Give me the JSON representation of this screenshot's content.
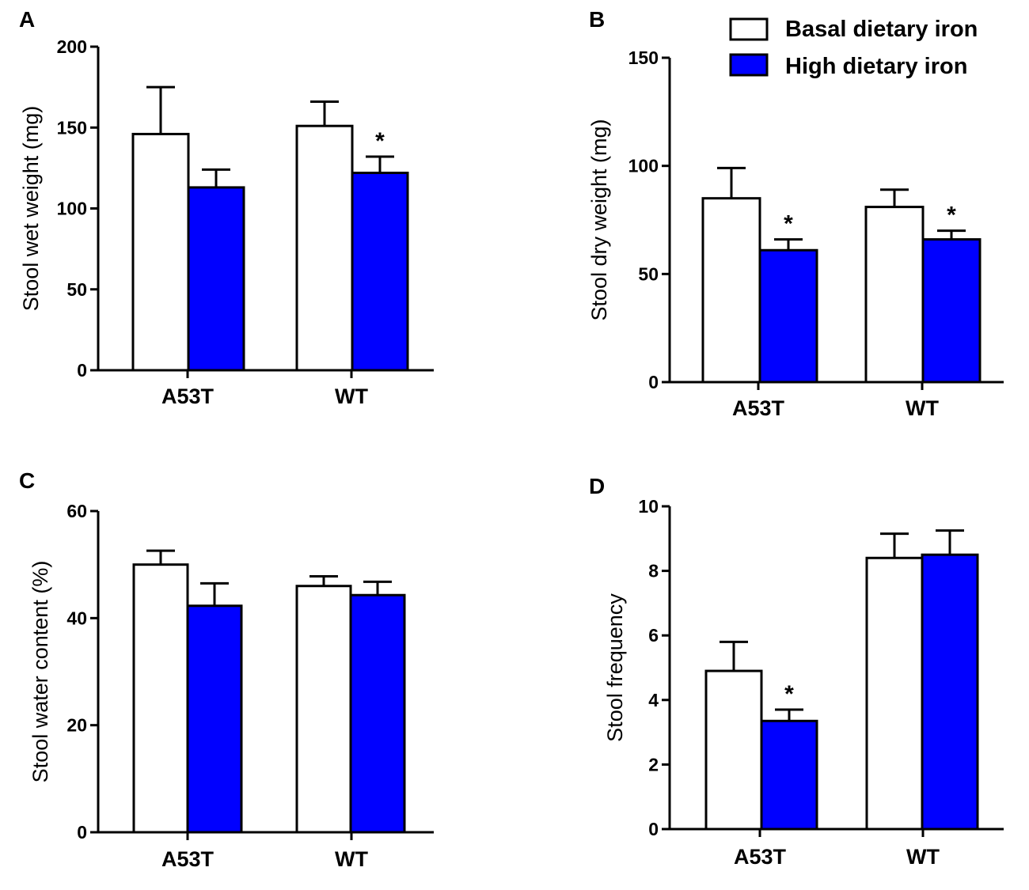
{
  "legend": {
    "items": [
      {
        "label": "Basal dietary iron",
        "color": "#ffffff"
      },
      {
        "label": "High dietary iron",
        "color": "#0000ff"
      }
    ]
  },
  "colors": {
    "basal": "#ffffff",
    "high": "#0000ff",
    "stroke": "#000000"
  },
  "chart_data": [
    {
      "panel": "A",
      "type": "bar",
      "categories": [
        "A53T",
        "WT"
      ],
      "ylabel": "Stool wet weight (mg)",
      "ylim": [
        0,
        200
      ],
      "yticks": [
        "0",
        "50",
        "100",
        "150",
        "200"
      ],
      "series": [
        {
          "name": "Basal dietary iron",
          "values": [
            146,
            151
          ],
          "errors": [
            29,
            15
          ]
        },
        {
          "name": "High dietary iron",
          "values": [
            113,
            122
          ],
          "errors": [
            11,
            10
          ]
        }
      ],
      "significance": [
        {
          "category": 1,
          "series": 1,
          "mark": "*"
        }
      ]
    },
    {
      "panel": "B",
      "type": "bar",
      "categories": [
        "A53T",
        "WT"
      ],
      "ylabel": "Stool dry weight (mg)",
      "ylim": [
        0,
        150
      ],
      "yticks": [
        "0",
        "50",
        "100",
        "150"
      ],
      "series": [
        {
          "name": "Basal dietary iron",
          "values": [
            85,
            81
          ],
          "errors": [
            14,
            8
          ]
        },
        {
          "name": "High dietary iron",
          "values": [
            61,
            66
          ],
          "errors": [
            5,
            4
          ]
        }
      ],
      "significance": [
        {
          "category": 0,
          "series": 1,
          "mark": "*"
        },
        {
          "category": 1,
          "series": 1,
          "mark": "*"
        }
      ]
    },
    {
      "panel": "C",
      "type": "bar",
      "categories": [
        "A53T",
        "WT"
      ],
      "ylabel": "Stool water content (%)",
      "ylim": [
        0,
        60
      ],
      "yticks": [
        "0",
        "20",
        "40",
        "60"
      ],
      "series": [
        {
          "name": "Basal dietary iron",
          "values": [
            50,
            46
          ],
          "errors": [
            2.6,
            1.8
          ]
        },
        {
          "name": "High dietary iron",
          "values": [
            42.3,
            44.3
          ],
          "errors": [
            4.2,
            2.5
          ]
        }
      ],
      "significance": []
    },
    {
      "panel": "D",
      "type": "bar",
      "categories": [
        "A53T",
        "WT"
      ],
      "ylabel": "Stool frequency",
      "ylim": [
        0,
        10
      ],
      "yticks": [
        "0",
        "2",
        "4",
        "6",
        "8",
        "10"
      ],
      "series": [
        {
          "name": "Basal dietary iron",
          "values": [
            4.9,
            8.4
          ],
          "errors": [
            0.9,
            0.75
          ]
        },
        {
          "name": "High dietary iron",
          "values": [
            3.35,
            8.5
          ],
          "errors": [
            0.35,
            0.75
          ]
        }
      ],
      "significance": [
        {
          "category": 0,
          "series": 1,
          "mark": "*"
        }
      ]
    }
  ]
}
